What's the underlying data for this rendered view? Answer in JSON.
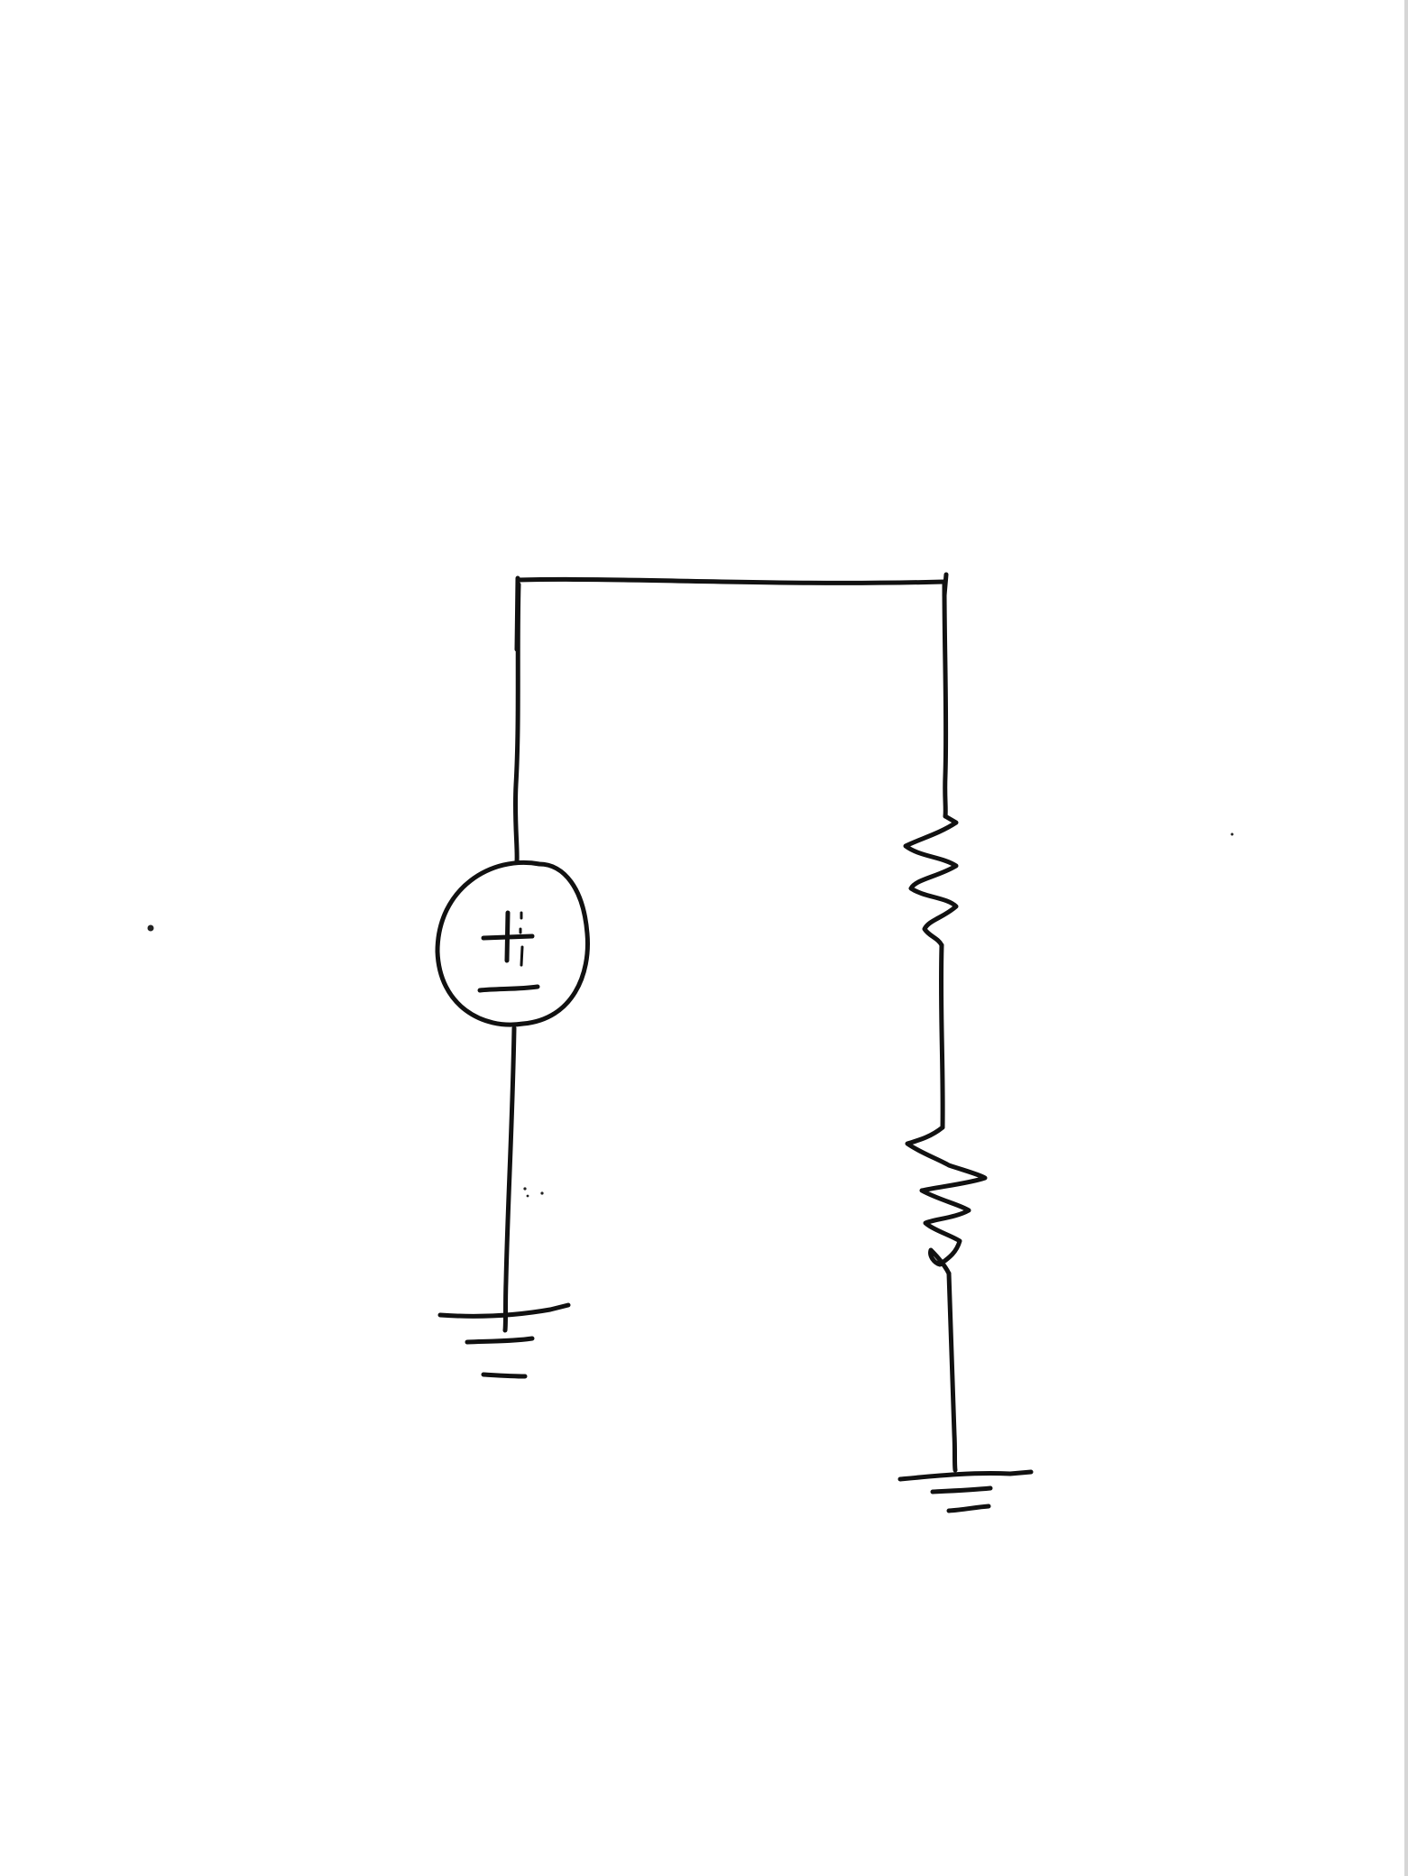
{
  "diagram": {
    "type": "circuit-schematic",
    "style": "hand-drawn",
    "stroke_color": "#111111",
    "background_color": "#ffffff",
    "components": [
      {
        "id": "V1",
        "kind": "voltage-source",
        "symbol": "plus-minus-circle"
      },
      {
        "id": "R1",
        "kind": "resistor"
      },
      {
        "id": "R2",
        "kind": "resistor"
      },
      {
        "id": "GND1",
        "kind": "ground"
      },
      {
        "id": "GND2",
        "kind": "ground"
      }
    ],
    "connections": [
      [
        "V1+",
        "top-wire"
      ],
      [
        "top-wire",
        "R1"
      ],
      [
        "R1",
        "R2"
      ],
      [
        "R2",
        "GND2"
      ],
      [
        "V1-",
        "GND1"
      ]
    ]
  }
}
